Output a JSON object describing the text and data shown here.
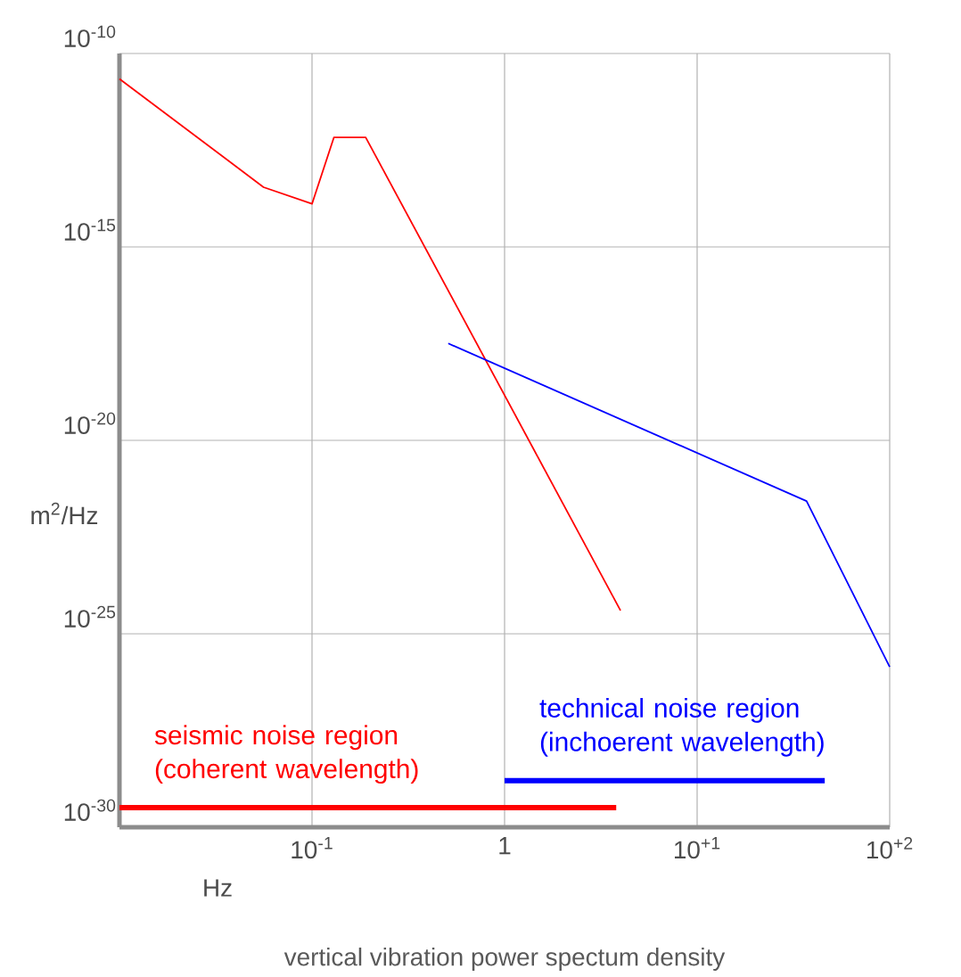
{
  "chart_data": {
    "type": "line",
    "title": "vertical vibration power spectum density",
    "xlabel": "Hz",
    "ylabel": "m$^{2}$/Hz",
    "log": "xy",
    "grid": true,
    "xlim": [
      0.01,
      100
    ],
    "ylim": [
      1e-30,
      1e-10
    ],
    "xticks": [
      {
        "value": 0.01,
        "label": null
      },
      {
        "value": 0.1,
        "label": "10$^{-1}$"
      },
      1,
      {
        "value": 10,
        "label": "10$^{+1}$"
      },
      {
        "value": 100,
        "label": "10$^{+2}$"
      }
    ],
    "yticks": [
      {
        "value": 1e-30,
        "label": "10$^{-30}$"
      },
      {
        "value": 1e-25,
        "label": "10$^{-25}$"
      },
      {
        "value": 1e-20,
        "label": "10$^{-20}$"
      },
      {
        "value": 1e-15,
        "label": "10$^{-15}$"
      },
      {
        "value": 1e-10,
        "label": "10$^{-10}$"
      }
    ],
    "series": [
      {
        "color": "#ff0000",
        "x": [
          0.01,
          0.056,
          0.1,
          0.13,
          0.19,
          4.0
        ],
        "values": [
          2.2e-11,
          3.5e-14,
          1.3e-14,
          6.8e-13,
          6.8e-13,
          4e-25
        ]
      },
      {
        "color": "#0000ff",
        "x": [
          0.51,
          37,
          100
        ],
        "values": [
          3.2e-18,
          2.7e-22,
          1.4e-26
        ]
      },
      {
        "name": "seismic noise region (coherent wavelength)",
        "color": "#ff0000",
        "x": [
          0.01,
          3.8
        ],
        "values": [
          3.2e-30,
          3.2e-30
        ]
      },
      {
        "name": "technical noise region (inchoerent wavelength)",
        "color": "#0000ff",
        "x": [
          1,
          46
        ],
        "values": [
          1.6e-29,
          1.6e-29
        ]
      }
    ]
  }
}
